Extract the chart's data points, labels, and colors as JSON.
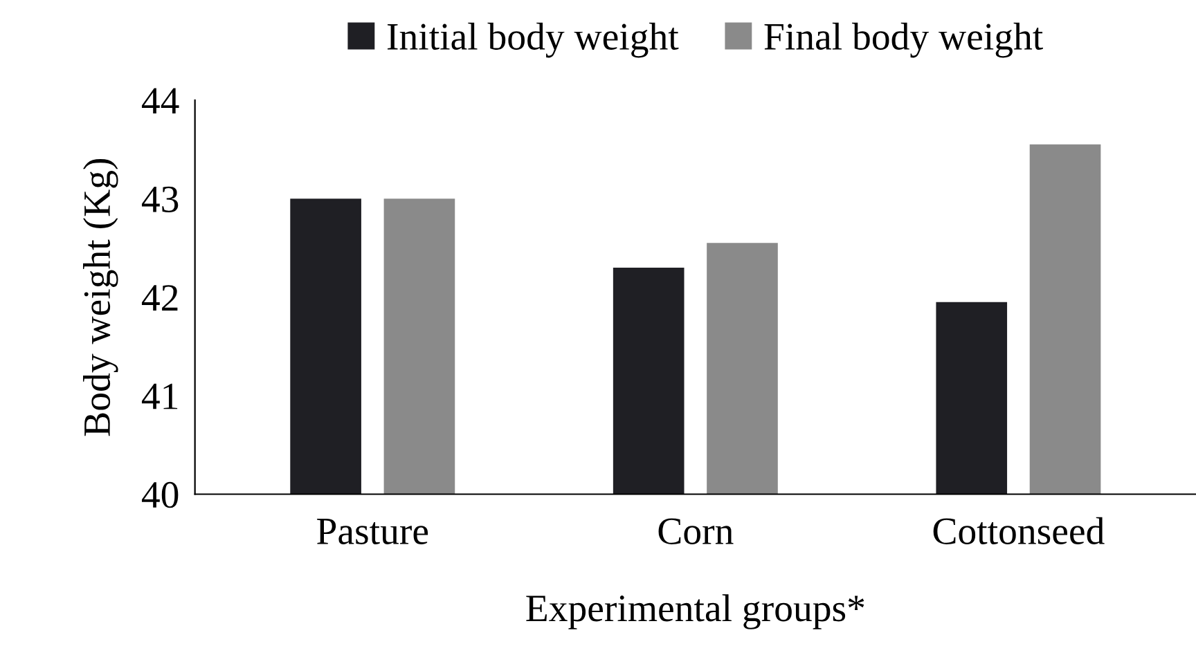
{
  "chart_data": {
    "type": "bar",
    "xlabel": "Experimental groups*",
    "ylabel": "Body weight (Kg)",
    "categories": [
      "Pasture",
      "Corn",
      "Cottonseed"
    ],
    "series": [
      {
        "name": "Initial body weight",
        "color": "#1f1f24",
        "values": [
          43.0,
          42.3,
          41.95
        ]
      },
      {
        "name": "Final body weight",
        "color": "#8a8a8a",
        "values": [
          43.0,
          42.55,
          43.55
        ]
      }
    ],
    "ylim": [
      40,
      44
    ],
    "yticks": [
      40,
      41,
      42,
      43,
      44
    ],
    "grid": false,
    "legend": "top"
  }
}
